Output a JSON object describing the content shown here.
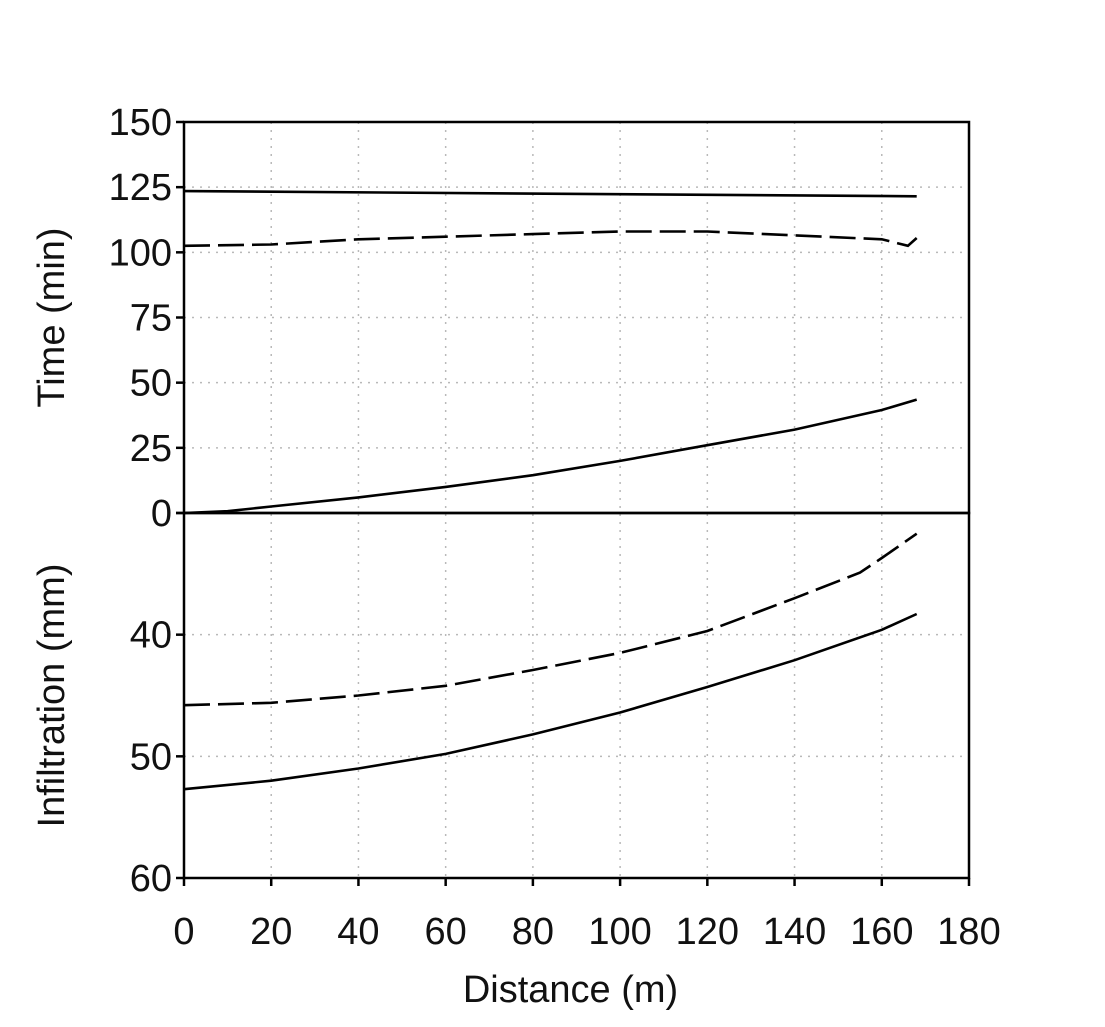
{
  "chart_data": {
    "type": "line",
    "x_label": "Distance (m)",
    "x_ticks": [
      0,
      20,
      40,
      60,
      80,
      100,
      120,
      140,
      160,
      180
    ],
    "xlim": [
      0,
      180
    ],
    "grid": true,
    "panels": [
      {
        "id": "time",
        "ylabel": "Time (min)",
        "ylim": [
          0,
          150
        ],
        "y_ticks": [
          0,
          25,
          50,
          75,
          100,
          125,
          150
        ],
        "y_tick_labels": [
          "0",
          "25",
          "50",
          "75",
          "100",
          "125",
          "150"
        ],
        "series": [
          {
            "style": "solid",
            "x": [
              0,
              168
            ],
            "y": [
              123.5,
              121.5
            ]
          },
          {
            "style": "dashed",
            "x": [
              0,
              20,
              40,
              60,
              80,
              100,
              120,
              140,
              160,
              166,
              168
            ],
            "y": [
              102.5,
              103,
              105,
              106,
              107,
              108,
              108,
              106.5,
              105,
              102.5,
              105.5
            ]
          },
          {
            "style": "solid",
            "x": [
              0,
              10,
              20,
              40,
              60,
              80,
              100,
              120,
              140,
              160,
              168
            ],
            "y": [
              0,
              0.7,
              2.5,
              6,
              10,
              14.5,
              20,
              26,
              32,
              39.5,
              43.5
            ]
          }
        ]
      },
      {
        "id": "infiltration",
        "ylabel": "Infiltration (mm)",
        "ylim": [
          30,
          60
        ],
        "y_inverted": true,
        "y_ticks": [
          30,
          40,
          50,
          60
        ],
        "y_tick_labels": [
          "",
          "40",
          "50",
          "60"
        ],
        "series": [
          {
            "style": "dashed",
            "x": [
              0,
              20,
              40,
              60,
              80,
              100,
              120,
              140,
              155,
              160,
              168
            ],
            "y": [
              45.8,
              45.6,
              45,
              44.2,
              42.9,
              41.5,
              39.7,
              37,
              34.9,
              33.7,
              31.7
            ]
          },
          {
            "style": "solid",
            "x": [
              0,
              20,
              40,
              60,
              80,
              100,
              120,
              140,
              160,
              168
            ],
            "y": [
              52.7,
              52,
              51,
              49.8,
              48.2,
              46.4,
              44.3,
              42.1,
              39.6,
              38.3
            ]
          }
        ]
      }
    ]
  }
}
